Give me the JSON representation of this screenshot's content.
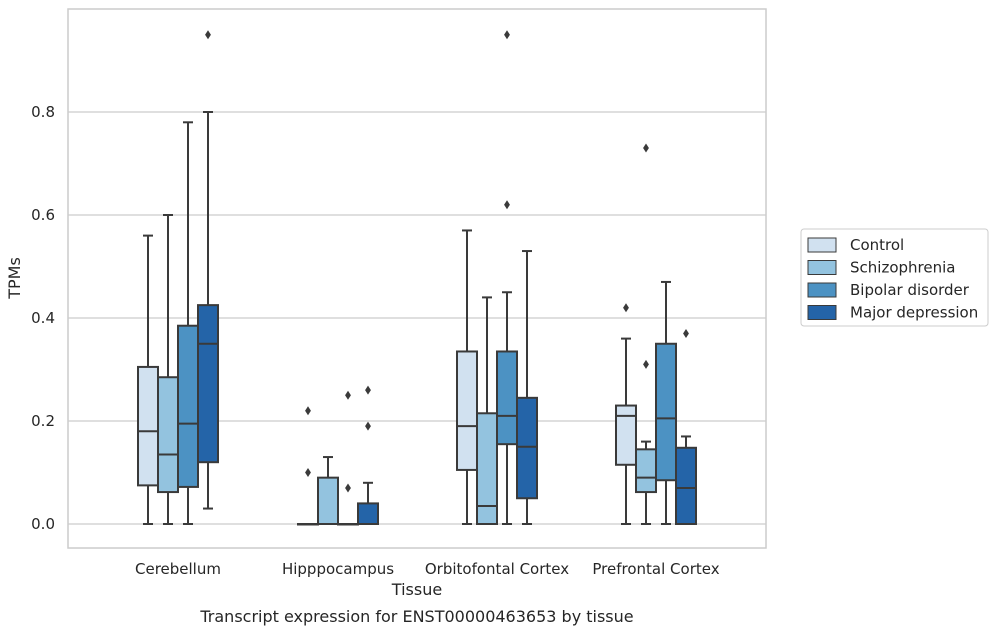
{
  "chart_data": {
    "type": "box",
    "title": "",
    "caption": "Transcript expression for ENST00000463653 by tissue",
    "xlabel": "Tissue",
    "ylabel": "TPMs",
    "ylim": [
      -0.045,
      1.0
    ],
    "yticks": [
      0.0,
      0.2,
      0.4,
      0.6,
      0.8
    ],
    "ytick_labels": [
      "0.0",
      "0.2",
      "0.4",
      "0.6",
      "0.8"
    ],
    "grid": "horizontal",
    "legend_position": "right",
    "categories": [
      "Cerebellum",
      "Hipppocampus",
      "Orbitofontal Cortex",
      "Prefrontal Cortex"
    ],
    "series": [
      {
        "name": "Control",
        "color": "#d1e1f0",
        "boxes": [
          {
            "whisker_low": 0.0,
            "q1": 0.075,
            "median": 0.18,
            "q3": 0.305,
            "whisker_high": 0.56,
            "outliers": []
          },
          {
            "whisker_low": 0.0,
            "q1": 0.0,
            "median": 0.0,
            "q3": 0.0,
            "whisker_high": 0.0,
            "outliers": [
              0.1,
              0.22
            ]
          },
          {
            "whisker_low": 0.0,
            "q1": 0.105,
            "median": 0.19,
            "q3": 0.335,
            "whisker_high": 0.57,
            "outliers": []
          },
          {
            "whisker_low": 0.0,
            "q1": 0.115,
            "median": 0.21,
            "q3": 0.23,
            "whisker_high": 0.36,
            "outliers": [
              0.42
            ]
          }
        ]
      },
      {
        "name": "Schizophrenia",
        "color": "#93c3df",
        "boxes": [
          {
            "whisker_low": 0.0,
            "q1": 0.062,
            "median": 0.135,
            "q3": 0.285,
            "whisker_high": 0.6,
            "outliers": []
          },
          {
            "whisker_low": 0.0,
            "q1": 0.0,
            "median": 0.0,
            "q3": 0.09,
            "whisker_high": 0.13,
            "outliers": []
          },
          {
            "whisker_low": 0.0,
            "q1": 0.0,
            "median": 0.035,
            "q3": 0.215,
            "whisker_high": 0.44,
            "outliers": []
          },
          {
            "whisker_low": 0.0,
            "q1": 0.062,
            "median": 0.09,
            "q3": 0.145,
            "whisker_high": 0.16,
            "outliers": [
              0.31,
              0.73
            ]
          }
        ]
      },
      {
        "name": "Bipolar disorder",
        "color": "#4c92c3",
        "boxes": [
          {
            "whisker_low": 0.0,
            "q1": 0.072,
            "median": 0.195,
            "q3": 0.385,
            "whisker_high": 0.78,
            "outliers": []
          },
          {
            "whisker_low": 0.0,
            "q1": 0.0,
            "median": 0.0,
            "q3": 0.0,
            "whisker_high": 0.0,
            "outliers": [
              0.07,
              0.25
            ]
          },
          {
            "whisker_low": 0.0,
            "q1": 0.155,
            "median": 0.21,
            "q3": 0.335,
            "whisker_high": 0.45,
            "outliers": [
              0.62,
              0.95
            ]
          },
          {
            "whisker_low": 0.0,
            "q1": 0.085,
            "median": 0.205,
            "q3": 0.35,
            "whisker_high": 0.47,
            "outliers": []
          }
        ]
      },
      {
        "name": "Major depression",
        "color": "#2464a8",
        "boxes": [
          {
            "whisker_low": 0.03,
            "q1": 0.12,
            "median": 0.35,
            "q3": 0.425,
            "whisker_high": 0.8,
            "outliers": [
              0.95
            ]
          },
          {
            "whisker_low": 0.0,
            "q1": 0.0,
            "median": 0.0,
            "q3": 0.04,
            "whisker_high": 0.08,
            "outliers": [
              0.19,
              0.26
            ]
          },
          {
            "whisker_low": 0.0,
            "q1": 0.05,
            "median": 0.15,
            "q3": 0.245,
            "whisker_high": 0.53,
            "outliers": []
          },
          {
            "whisker_low": 0.0,
            "q1": 0.0,
            "median": 0.07,
            "q3": 0.148,
            "whisker_high": 0.17,
            "outliers": [
              0.37
            ]
          }
        ]
      }
    ]
  }
}
